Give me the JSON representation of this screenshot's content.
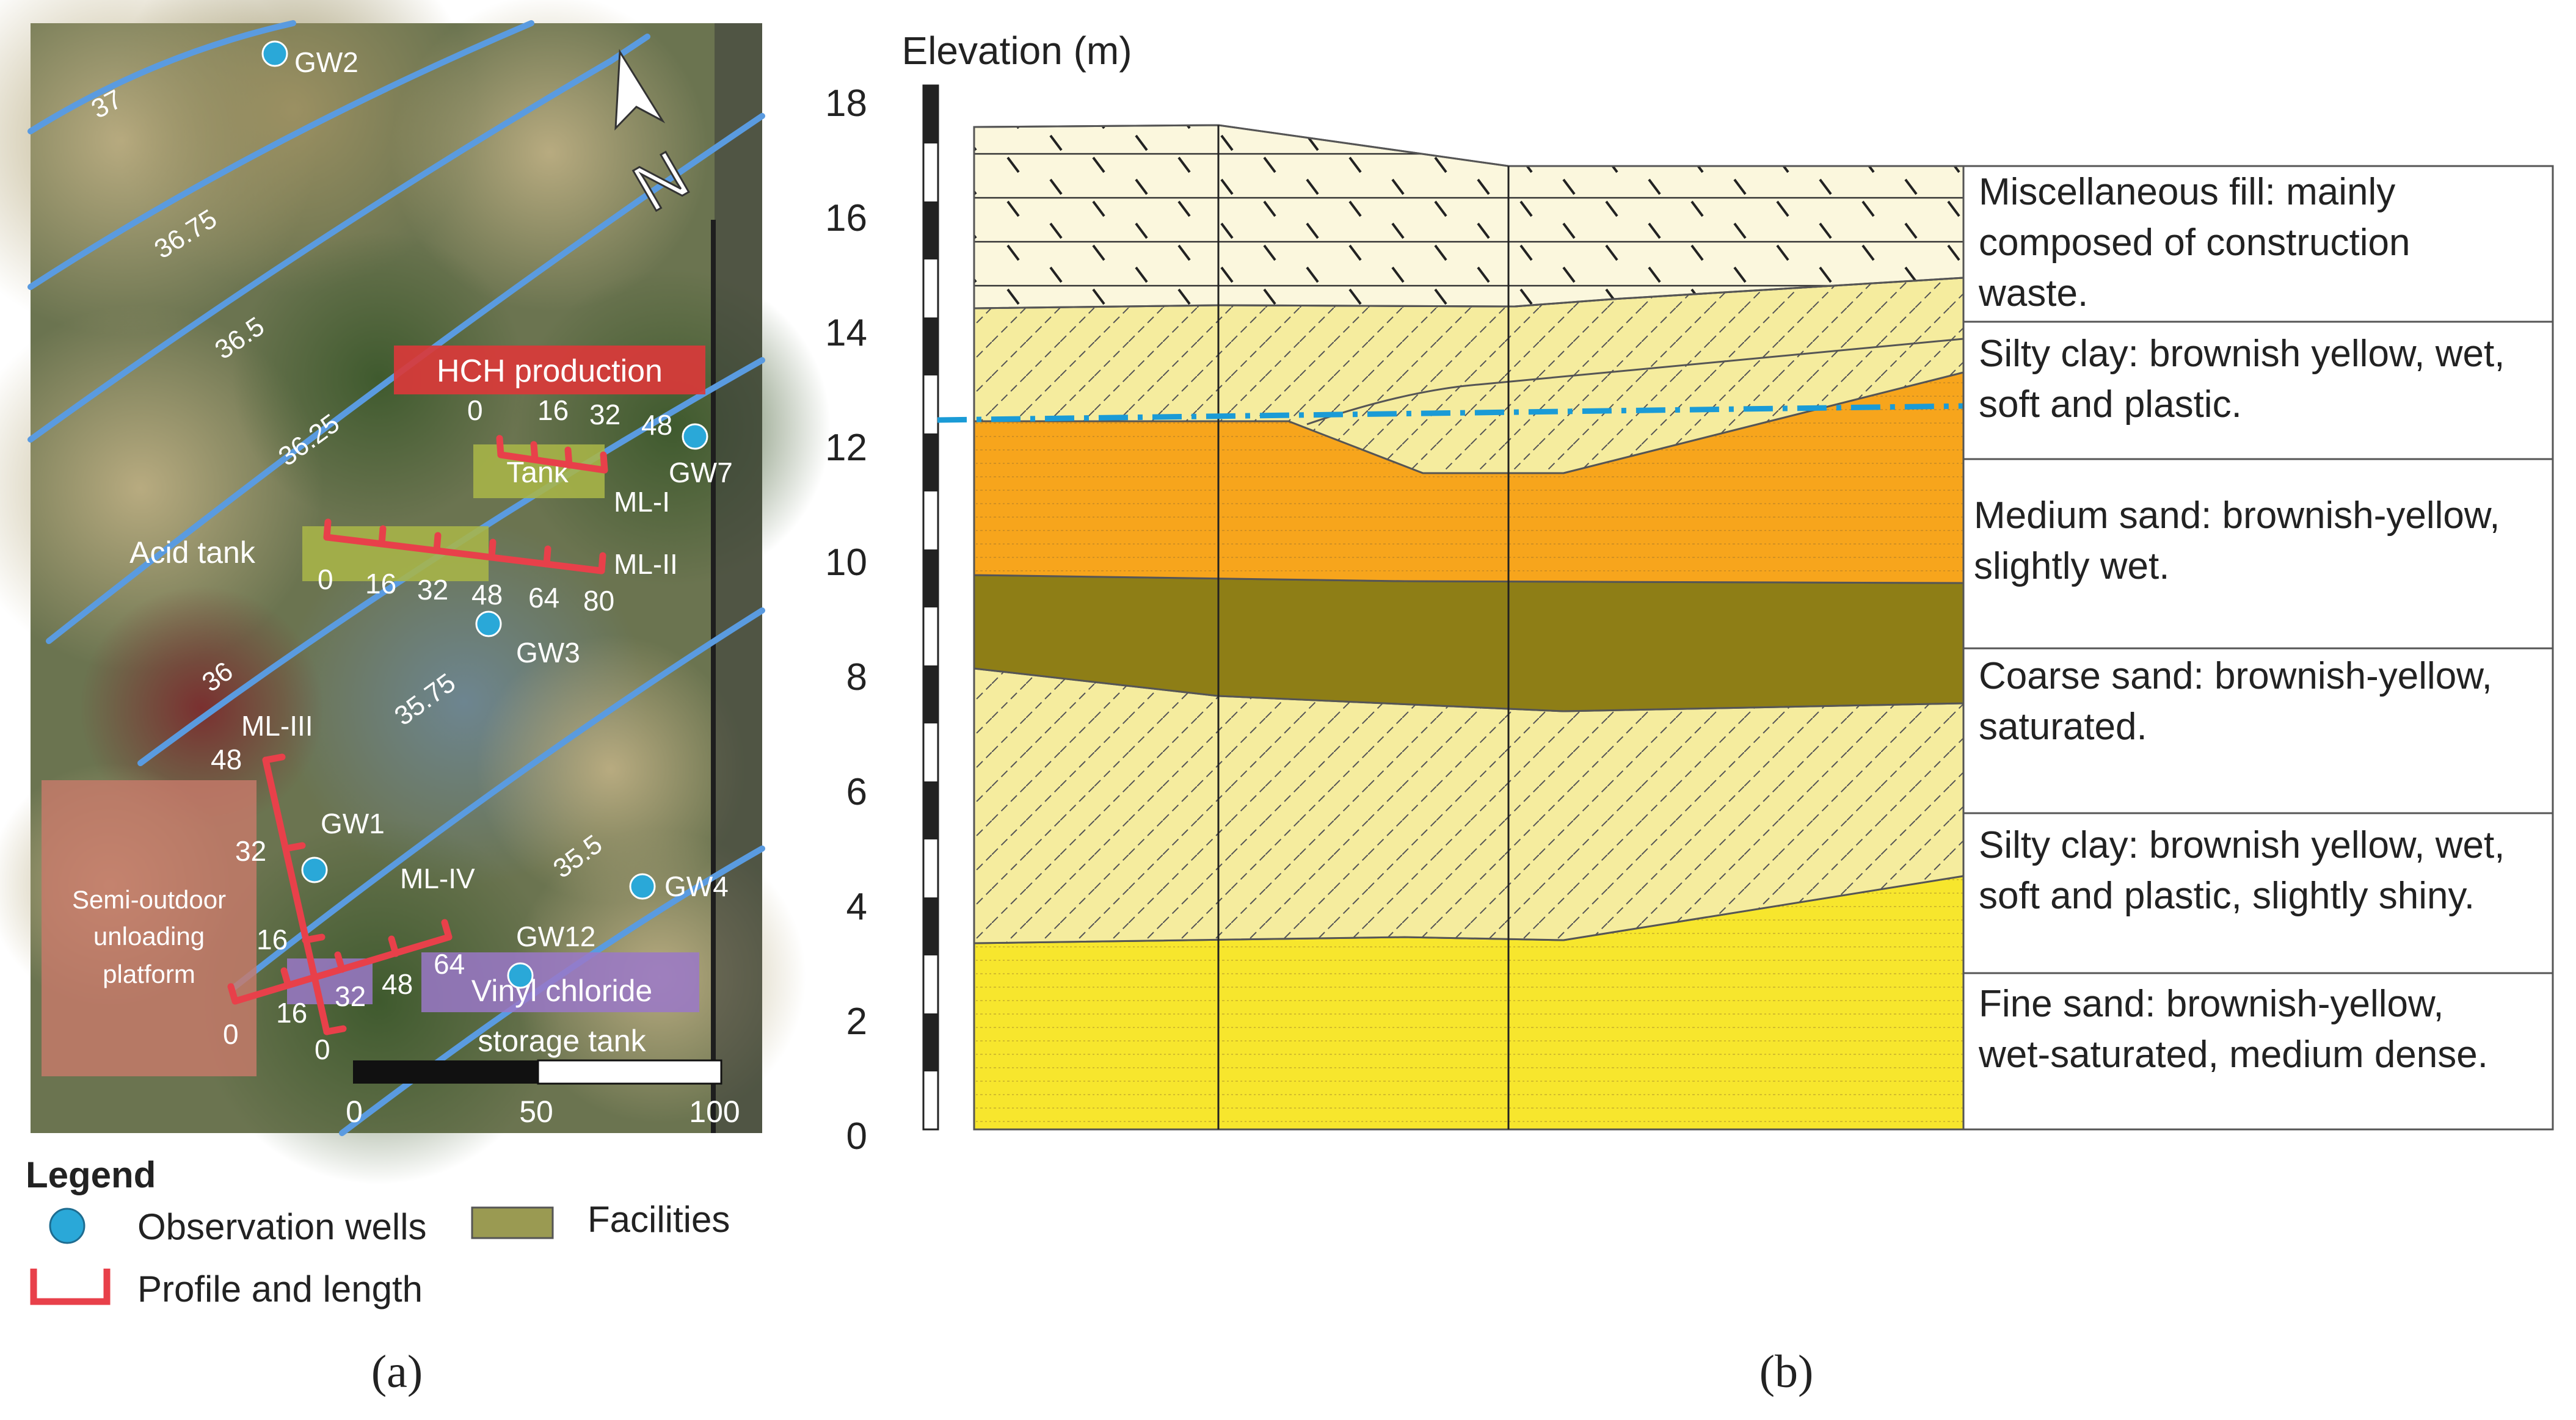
{
  "map": {
    "wells": [
      {
        "id": "GW2"
      },
      {
        "id": "GW7"
      },
      {
        "id": "GW3"
      },
      {
        "id": "GW1"
      },
      {
        "id": "GW4"
      },
      {
        "id": "GW12"
      }
    ],
    "contours": [
      "37",
      "36.75",
      "36.5",
      "36.25",
      "36",
      "35.75",
      "35.5"
    ],
    "facilities": {
      "hch": "HCH production",
      "tank": "Tank",
      "acid_tank": "Acid tank",
      "vinyl_line1": "Vinyl chloride",
      "vinyl_line2": "storage tank",
      "platform_line1": "Semi-outdoor",
      "platform_line2": "unloading",
      "platform_line3": "platform"
    },
    "profiles": {
      "ml1": {
        "name": "ML-I",
        "ticks": [
          "0",
          "16",
          "32",
          "48"
        ]
      },
      "ml2": {
        "name": "ML-II",
        "ticks": [
          "0",
          "16",
          "32",
          "48",
          "64",
          "80"
        ]
      },
      "ml3": {
        "name": "ML-III",
        "ticks": [
          "48",
          "32",
          "16",
          "0"
        ]
      },
      "ml4": {
        "name": "ML-IV",
        "ticks": [
          "0",
          "16",
          "32",
          "48",
          "64"
        ]
      }
    },
    "north": "N",
    "scale": {
      "labels": [
        "0",
        "50",
        "100"
      ]
    },
    "legend": {
      "title": "Legend",
      "wells": "Observation wells",
      "facilities": "Facilities",
      "profile": "Profile and length"
    },
    "caption": "(a)"
  },
  "section": {
    "axis_title": "Elevation (m)",
    "ticks": [
      "18",
      "16",
      "14",
      "12",
      "10",
      "8",
      "6",
      "4",
      "2",
      "0"
    ],
    "layers": [
      {
        "line1": "Miscellaneous fill: mainly",
        "line2": "composed of construction",
        "line3": "waste."
      },
      {
        "line1": "Silty clay: brownish yellow, wet,",
        "line2": "soft and plastic."
      },
      {
        "line1": "Medium sand: brownish-yellow,",
        "line2": "slightly wet."
      },
      {
        "line1": "Coarse sand: brownish-yellow,",
        "line2": "saturated."
      },
      {
        "line1": "Silty clay: brownish yellow, wet,",
        "line2": "soft and plastic, slightly shiny."
      },
      {
        "line1": "Fine sand: brownish-yellow,",
        "line2": "wet-saturated, medium dense."
      }
    ],
    "caption": "(b)"
  },
  "colors": {
    "well": "#2aa8d8",
    "profile": "#e8404a",
    "contour": "#5a9be0",
    "hch": "#d9393a",
    "facility": "#a9b548",
    "vinyl": "#9a78c8",
    "platform": "#c77a6a",
    "fill_layer": "#fbf7dd",
    "silty_clay": "#f5ec9e",
    "medium_sand": "#f7a51c",
    "coarse_sand": "#8e7e16",
    "fine_sand": "#f7e62d",
    "water_table": "#1a9bd6"
  }
}
